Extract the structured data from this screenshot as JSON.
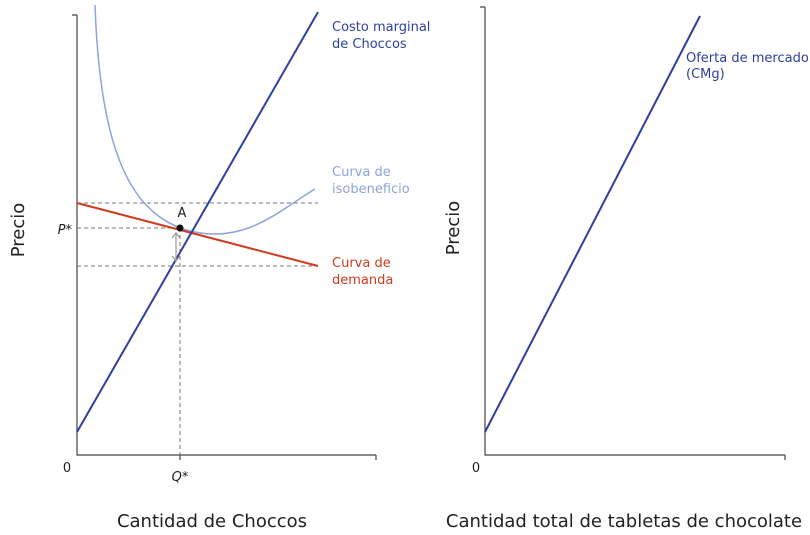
{
  "left_panel": {
    "y_axis_label": "Precio",
    "x_axis_label": "Cantidad de Choccos",
    "origin": "0",
    "price_label": "P*",
    "quantity_label": "Q*",
    "point_label": "A",
    "marginal_cost_label": [
      "Costo marginal",
      "de Choccos"
    ],
    "isoprofit_label": [
      "Curva de",
      "isobeneficio"
    ],
    "demand_label": [
      "Curva de",
      "demanda"
    ]
  },
  "right_panel": {
    "y_axis_label": "Precio",
    "x_axis_label": "Cantidad total de tabletas de chocolate",
    "origin": "0",
    "supply_label": [
      "Oferta de mercado",
      "(CMg)"
    ]
  }
}
